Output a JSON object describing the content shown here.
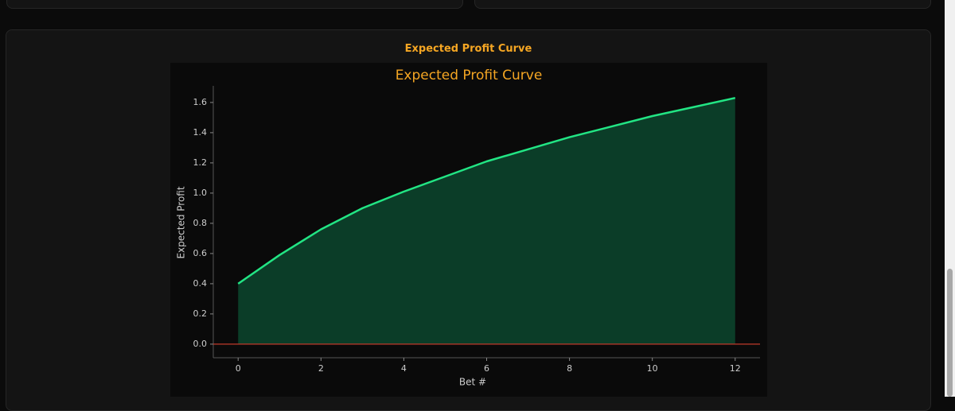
{
  "panel": {
    "title": "Expected Profit Curve"
  },
  "chart_data": {
    "type": "area",
    "title": "Expected Profit Curve",
    "x_label": "Bet #",
    "y_label": "Expected Profit",
    "x": [
      0,
      1,
      2,
      3,
      4,
      5,
      6,
      7,
      8,
      9,
      10,
      11,
      12
    ],
    "series": [
      {
        "name": "Expected Profit",
        "color": "#22e584",
        "fill_color": "#0b3d28",
        "values": [
          0.4,
          0.59,
          0.76,
          0.9,
          1.01,
          1.11,
          1.21,
          1.29,
          1.37,
          1.44,
          1.51,
          1.57,
          1.63
        ]
      }
    ],
    "reference_line": {
      "value": 0,
      "color": "#c0392b"
    },
    "xlim": [
      -0.6,
      12.6
    ],
    "ylim": [
      -0.09,
      1.71
    ],
    "xticks": [
      0,
      2,
      4,
      6,
      8,
      10,
      12
    ],
    "yticks": [
      {
        "value": 0,
        "label": "0.0"
      },
      0.2,
      0.4,
      0.6,
      0.8,
      {
        "value": 1,
        "label": "1.0"
      },
      1.2,
      1.4,
      1.6
    ]
  }
}
